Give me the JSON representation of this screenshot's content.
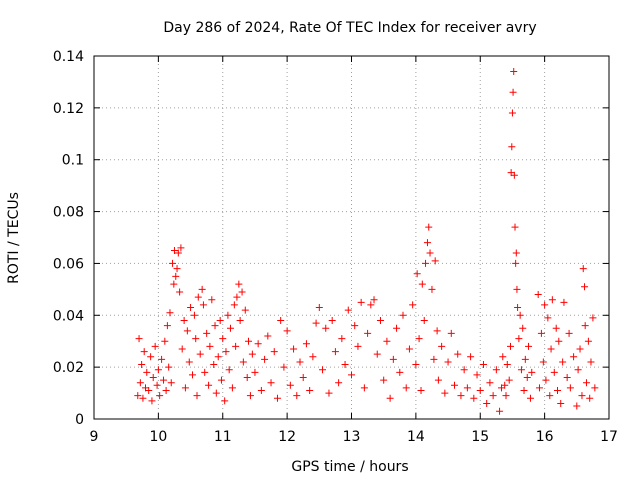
{
  "chart_data": {
    "type": "scatter",
    "title": "Day 286 of 2024, Rate Of TEC Index for receiver avry",
    "xlabel": "GPS time / hours",
    "ylabel": "ROTI / TECUs",
    "xlim": [
      9,
      17
    ],
    "ylim": [
      0,
      0.14
    ],
    "x_ticks": [
      9,
      10,
      11,
      12,
      13,
      14,
      15,
      16,
      17
    ],
    "x_tick_labels": [
      "9",
      "10",
      "11",
      "12",
      "13",
      "14",
      "15",
      "16",
      "17"
    ],
    "y_ticks": [
      0,
      0.02,
      0.04,
      0.06,
      0.08,
      0.1,
      0.12,
      0.14
    ],
    "y_tick_labels": [
      "0",
      "0.02",
      "0.04",
      "0.06",
      "0.08",
      "0.1",
      "0.12",
      "0.14"
    ],
    "grid": true,
    "marker": "+",
    "color": "#ff0000",
    "series": [
      {
        "name": "ROTI",
        "points": [
          [
            9.68,
            0.009
          ],
          [
            9.7,
            0.031
          ],
          [
            9.72,
            0.014
          ],
          [
            9.74,
            0.021
          ],
          [
            9.76,
            0.008
          ],
          [
            9.78,
            0.026
          ],
          [
            9.8,
            0.012
          ],
          [
            9.82,
            0.018
          ],
          [
            9.85,
            0.011
          ],
          [
            9.88,
            0.024
          ],
          [
            9.9,
            0.007
          ],
          [
            9.92,
            0.016
          ],
          [
            9.95,
            0.028
          ],
          [
            9.98,
            0.013
          ],
          [
            10.0,
            0.019
          ],
          [
            10.02,
            0.009
          ],
          [
            10.05,
            0.023
          ],
          [
            10.08,
            0.015
          ],
          [
            10.1,
            0.03
          ],
          [
            10.12,
            0.011
          ],
          [
            10.14,
            0.036
          ],
          [
            10.16,
            0.02
          ],
          [
            10.18,
            0.041
          ],
          [
            10.2,
            0.014
          ],
          [
            10.22,
            0.06
          ],
          [
            10.24,
            0.052
          ],
          [
            10.25,
            0.065
          ],
          [
            10.27,
            0.055
          ],
          [
            10.29,
            0.058
          ],
          [
            10.31,
            0.064
          ],
          [
            10.33,
            0.049
          ],
          [
            10.35,
            0.066
          ],
          [
            10.37,
            0.027
          ],
          [
            10.4,
            0.038
          ],
          [
            10.42,
            0.012
          ],
          [
            10.45,
            0.034
          ],
          [
            10.48,
            0.022
          ],
          [
            10.5,
            0.043
          ],
          [
            10.53,
            0.017
          ],
          [
            10.56,
            0.04
          ],
          [
            10.58,
            0.031
          ],
          [
            10.6,
            0.009
          ],
          [
            10.62,
            0.047
          ],
          [
            10.65,
            0.025
          ],
          [
            10.68,
            0.05
          ],
          [
            10.7,
            0.044
          ],
          [
            10.72,
            0.018
          ],
          [
            10.75,
            0.033
          ],
          [
            10.78,
            0.013
          ],
          [
            10.8,
            0.028
          ],
          [
            10.83,
            0.046
          ],
          [
            10.86,
            0.021
          ],
          [
            10.88,
            0.036
          ],
          [
            10.9,
            0.01
          ],
          [
            10.93,
            0.024
          ],
          [
            10.96,
            0.038
          ],
          [
            10.98,
            0.015
          ],
          [
            11.0,
            0.031
          ],
          [
            11.03,
            0.007
          ],
          [
            11.05,
            0.026
          ],
          [
            11.08,
            0.04
          ],
          [
            11.1,
            0.019
          ],
          [
            11.12,
            0.035
          ],
          [
            11.15,
            0.012
          ],
          [
            11.18,
            0.044
          ],
          [
            11.2,
            0.028
          ],
          [
            11.22,
            0.047
          ],
          [
            11.25,
            0.052
          ],
          [
            11.27,
            0.038
          ],
          [
            11.3,
            0.049
          ],
          [
            11.32,
            0.022
          ],
          [
            11.35,
            0.042
          ],
          [
            11.38,
            0.016
          ],
          [
            11.4,
            0.03
          ],
          [
            11.43,
            0.009
          ],
          [
            11.46,
            0.025
          ],
          [
            11.5,
            0.018
          ],
          [
            11.55,
            0.029
          ],
          [
            11.6,
            0.011
          ],
          [
            11.65,
            0.023
          ],
          [
            11.7,
            0.032
          ],
          [
            11.75,
            0.014
          ],
          [
            11.8,
            0.026
          ],
          [
            11.85,
            0.008
          ],
          [
            11.9,
            0.038
          ],
          [
            11.95,
            0.02
          ],
          [
            12.0,
            0.034
          ],
          [
            12.05,
            0.013
          ],
          [
            12.1,
            0.027
          ],
          [
            12.15,
            0.009
          ],
          [
            12.2,
            0.022
          ],
          [
            12.25,
            0.016
          ],
          [
            12.3,
            0.029
          ],
          [
            12.35,
            0.011
          ],
          [
            12.4,
            0.024
          ],
          [
            12.45,
            0.037
          ],
          [
            12.5,
            0.043
          ],
          [
            12.55,
            0.019
          ],
          [
            12.6,
            0.035
          ],
          [
            12.65,
            0.01
          ],
          [
            12.7,
            0.038
          ],
          [
            12.75,
            0.026
          ],
          [
            12.8,
            0.014
          ],
          [
            12.85,
            0.031
          ],
          [
            12.9,
            0.021
          ],
          [
            12.95,
            0.042
          ],
          [
            13.0,
            0.017
          ],
          [
            13.05,
            0.036
          ],
          [
            13.1,
            0.028
          ],
          [
            13.15,
            0.045
          ],
          [
            13.2,
            0.012
          ],
          [
            13.25,
            0.033
          ],
          [
            13.3,
            0.044
          ],
          [
            13.35,
            0.046
          ],
          [
            13.4,
            0.025
          ],
          [
            13.45,
            0.038
          ],
          [
            13.5,
            0.015
          ],
          [
            13.55,
            0.03
          ],
          [
            13.6,
            0.008
          ],
          [
            13.65,
            0.023
          ],
          [
            13.7,
            0.035
          ],
          [
            13.75,
            0.018
          ],
          [
            13.8,
            0.04
          ],
          [
            13.85,
            0.012
          ],
          [
            13.9,
            0.027
          ],
          [
            13.95,
            0.044
          ],
          [
            14.0,
            0.021
          ],
          [
            14.02,
            0.056
          ],
          [
            14.05,
            0.031
          ],
          [
            14.08,
            0.011
          ],
          [
            14.1,
            0.052
          ],
          [
            14.13,
            0.038
          ],
          [
            14.15,
            0.06
          ],
          [
            14.18,
            0.068
          ],
          [
            14.2,
            0.074
          ],
          [
            14.22,
            0.064
          ],
          [
            14.25,
            0.05
          ],
          [
            14.28,
            0.023
          ],
          [
            14.3,
            0.061
          ],
          [
            14.33,
            0.034
          ],
          [
            14.35,
            0.015
          ],
          [
            14.4,
            0.028
          ],
          [
            14.45,
            0.01
          ],
          [
            14.5,
            0.022
          ],
          [
            14.55,
            0.033
          ],
          [
            14.6,
            0.013
          ],
          [
            14.65,
            0.025
          ],
          [
            14.7,
            0.009
          ],
          [
            14.75,
            0.019
          ],
          [
            14.8,
            0.012
          ],
          [
            14.85,
            0.024
          ],
          [
            14.9,
            0.008
          ],
          [
            14.95,
            0.017
          ],
          [
            15.0,
            0.011
          ],
          [
            15.05,
            0.021
          ],
          [
            15.1,
            0.006
          ],
          [
            15.15,
            0.014
          ],
          [
            15.2,
            0.009
          ],
          [
            15.25,
            0.019
          ],
          [
            15.3,
            0.003
          ],
          [
            15.33,
            0.012
          ],
          [
            15.35,
            0.024
          ],
          [
            15.38,
            0.013
          ],
          [
            15.4,
            0.009
          ],
          [
            15.42,
            0.021
          ],
          [
            15.45,
            0.015
          ],
          [
            15.47,
            0.028
          ],
          [
            15.48,
            0.095
          ],
          [
            15.49,
            0.105
          ],
          [
            15.5,
            0.118
          ],
          [
            15.51,
            0.126
          ],
          [
            15.52,
            0.134
          ],
          [
            15.53,
            0.094
          ],
          [
            15.54,
            0.074
          ],
          [
            15.55,
            0.06
          ],
          [
            15.56,
            0.064
          ],
          [
            15.57,
            0.05
          ],
          [
            15.58,
            0.043
          ],
          [
            15.6,
            0.031
          ],
          [
            15.62,
            0.04
          ],
          [
            15.64,
            0.019
          ],
          [
            15.66,
            0.035
          ],
          [
            15.68,
            0.011
          ],
          [
            15.7,
            0.023
          ],
          [
            15.73,
            0.016
          ],
          [
            15.75,
            0.028
          ],
          [
            15.78,
            0.008
          ],
          [
            15.8,
            0.018
          ],
          [
            15.9,
            0.048
          ],
          [
            15.92,
            0.012
          ],
          [
            15.95,
            0.033
          ],
          [
            15.98,
            0.022
          ],
          [
            16.0,
            0.044
          ],
          [
            16.02,
            0.015
          ],
          [
            16.05,
            0.039
          ],
          [
            16.08,
            0.009
          ],
          [
            16.1,
            0.027
          ],
          [
            16.12,
            0.046
          ],
          [
            16.15,
            0.018
          ],
          [
            16.18,
            0.035
          ],
          [
            16.2,
            0.011
          ],
          [
            16.22,
            0.03
          ],
          [
            16.25,
            0.006
          ],
          [
            16.28,
            0.022
          ],
          [
            16.3,
            0.045
          ],
          [
            16.35,
            0.016
          ],
          [
            16.38,
            0.033
          ],
          [
            16.4,
            0.012
          ],
          [
            16.45,
            0.024
          ],
          [
            16.5,
            0.005
          ],
          [
            16.52,
            0.019
          ],
          [
            16.55,
            0.027
          ],
          [
            16.58,
            0.009
          ],
          [
            16.6,
            0.058
          ],
          [
            16.62,
            0.051
          ],
          [
            16.63,
            0.036
          ],
          [
            16.65,
            0.014
          ],
          [
            16.68,
            0.03
          ],
          [
            16.7,
            0.008
          ],
          [
            16.72,
            0.022
          ],
          [
            16.75,
            0.039
          ],
          [
            16.78,
            0.012
          ]
        ]
      }
    ]
  }
}
